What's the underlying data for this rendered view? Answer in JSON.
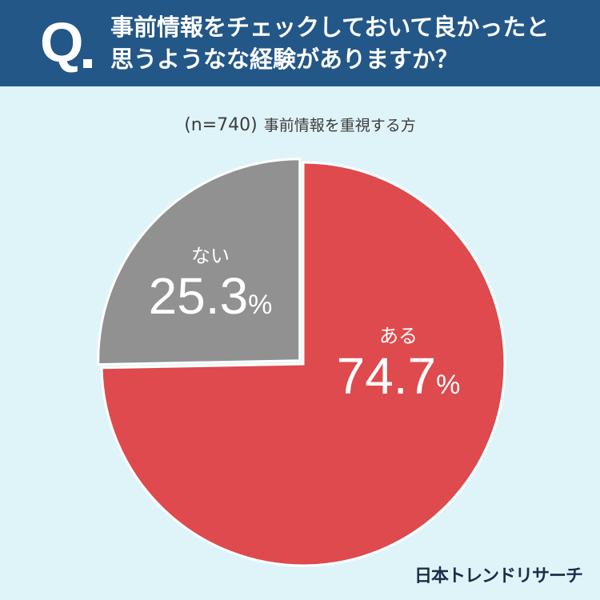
{
  "header": {
    "q_mark": "Q",
    "question_line1": "事前情報をチェックしておいて良かったと",
    "question_line2": "思うようなな経験がありますか？"
  },
  "subtitle": {
    "n": "(n=740)",
    "text": "事前情報を重視する方"
  },
  "chart_data": {
    "type": "pie",
    "title": "事前情報をチェックしておいて良かったと思うようなな経験がありますか？",
    "slices": [
      {
        "label": "ある",
        "value": 74.7,
        "display": "74.7",
        "unit": "%",
        "color": "#de4a4d"
      },
      {
        "label": "ない",
        "value": 25.3,
        "display": "25.3",
        "unit": "%",
        "color": "#919191"
      }
    ],
    "start_angle_deg": 0,
    "direction": "clockwise",
    "explode_slice": "ない"
  },
  "brand": {
    "logo_text": "日本トレンドリサーチ"
  }
}
